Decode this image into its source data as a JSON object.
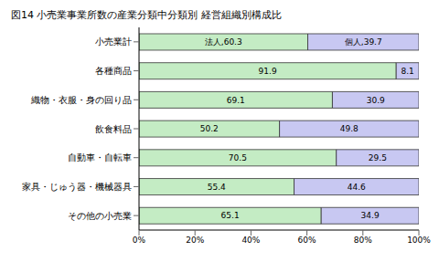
{
  "chart_data": {
    "type": "bar",
    "title": "図14 小売業事業所数の産業分類中分類別 経営組織別構成比",
    "orientation": "horizontal",
    "stacked": true,
    "data_labels": true,
    "grid": false,
    "categories": [
      "小売業計",
      "各種商品",
      "織物・衣服・身の回り品",
      "飲食料品",
      "自動車・自転車",
      "家具・じゅう器・機械器具",
      "その他の小売業"
    ],
    "series": [
      {
        "name": "法人",
        "color": "#c4ecc4",
        "values": [
          60.3,
          91.9,
          69.1,
          50.2,
          70.5,
          55.4,
          65.1
        ],
        "value_labels": [
          "法人,60.3",
          "91.9",
          "69.1",
          "50.2",
          "70.5",
          "55.4",
          "65.1"
        ]
      },
      {
        "name": "個人",
        "color": "#c8c8f2",
        "values": [
          39.7,
          8.1,
          30.9,
          49.8,
          29.5,
          44.6,
          34.9
        ],
        "value_labels": [
          "個人,39.7",
          "8.1",
          "30.9",
          "49.8",
          "29.5",
          "44.6",
          "34.9"
        ]
      }
    ],
    "xlim": [
      0,
      100
    ],
    "xticks": [
      {
        "value": 0,
        "label": "0%"
      },
      {
        "value": 20,
        "label": "20%"
      },
      {
        "value": 40,
        "label": "40%"
      },
      {
        "value": 60,
        "label": "60%"
      },
      {
        "value": 80,
        "label": "80%"
      },
      {
        "value": 100,
        "label": "100%"
      }
    ]
  }
}
